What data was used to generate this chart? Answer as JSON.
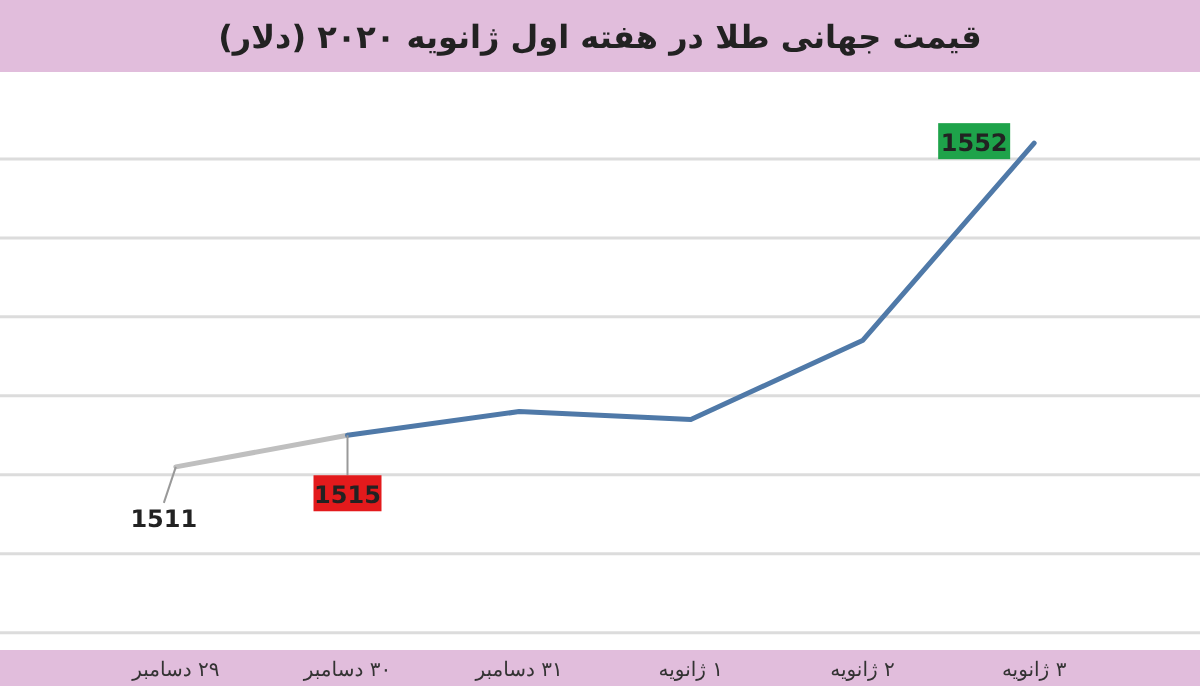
{
  "chart_data": {
    "type": "line",
    "title": "قیمت جهانی طلا در هفته اول ژانویه ۲۰۲۰ (دلار)",
    "categories": [
      "۲۹ دسامبر",
      "۳۰ دسامبر",
      "۳۱ دسامبر",
      "۱ ژانویه",
      "۲ ژانویه",
      "۳ ژانویه"
    ],
    "series": [
      {
        "color": "#bfbfbf",
        "values": [
          1511,
          1515,
          null,
          null,
          null,
          null
        ],
        "value_labels": [
          "1511",
          null,
          null,
          null,
          null,
          null
        ]
      },
      {
        "color": "#4f79a8",
        "values": [
          null,
          1515,
          1518,
          1517,
          1527,
          1552
        ],
        "value_labels": [
          null,
          "1515",
          null,
          null,
          null,
          "1552"
        ]
      }
    ],
    "yticks": [
      {
        "value": 1490,
        "label": null
      },
      {
        "value": 1500,
        "label": null
      },
      {
        "value": 1510,
        "label": null
      },
      {
        "value": 1520,
        "label": null
      },
      {
        "value": 1530,
        "label": null
      },
      {
        "value": 1540,
        "label": null
      },
      {
        "value": 1550,
        "label": null
      }
    ],
    "grid": "y",
    "tick_labels": "x",
    "marker": "none",
    "line_style": "solid"
  }
}
